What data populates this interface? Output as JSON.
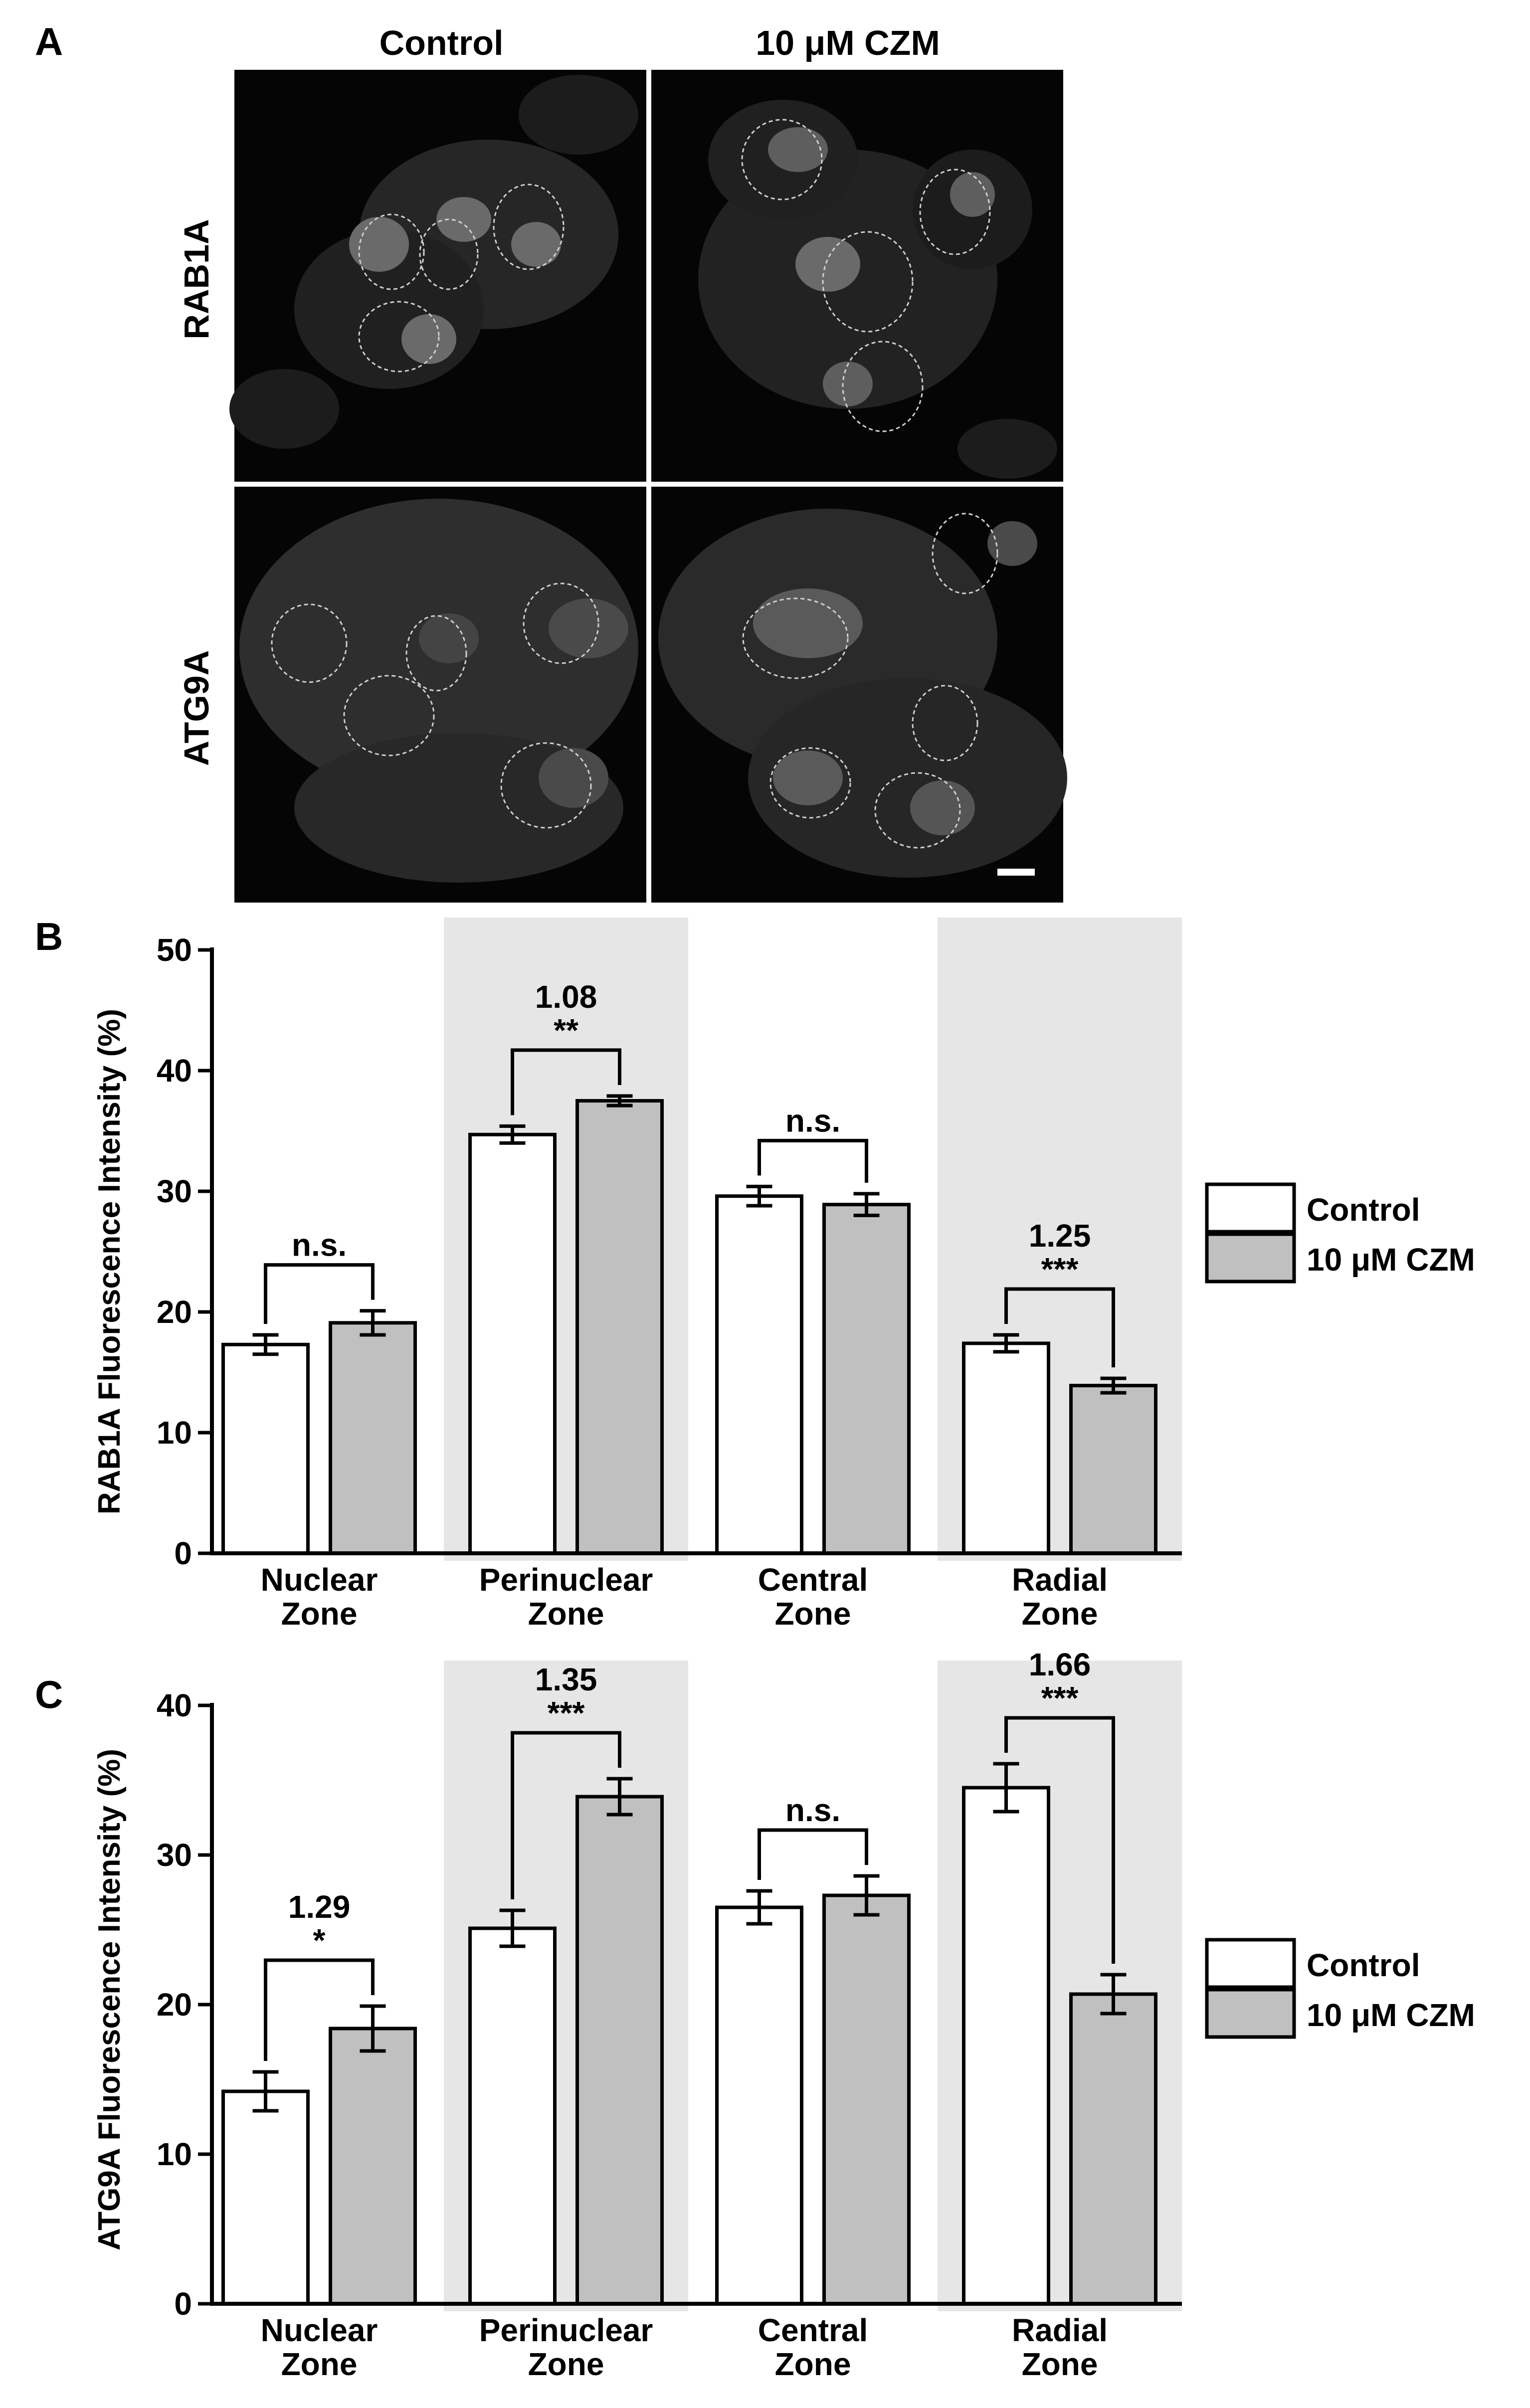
{
  "panel_a": {
    "label": "A",
    "columns": [
      "Control",
      "10 μM CZM"
    ],
    "rows": [
      "RAB1A",
      "ATG9A"
    ]
  },
  "chart_data": [
    {
      "panel_label": "B",
      "type": "bar",
      "ylabel": "RAB1A Fluorescence Intensity (%)",
      "ylim": [
        0,
        50
      ],
      "yticks": [
        0,
        10,
        20,
        30,
        40,
        50
      ],
      "categories": [
        "Nuclear\nZone",
        "Perinuclear\nZone",
        "Central\nZone",
        "Radial\nZone"
      ],
      "shaded_categories": [
        1,
        3
      ],
      "series": [
        {
          "name": "Control",
          "color": "#ffffff",
          "values": [
            17.3,
            34.7,
            29.6,
            17.4
          ],
          "errors": [
            0.8,
            0.7,
            0.8,
            0.7
          ]
        },
        {
          "name": "10 μM CZM",
          "color": "#c0c0c0",
          "values": [
            19.1,
            37.5,
            28.9,
            13.9
          ],
          "errors": [
            1.0,
            0.4,
            0.9,
            0.6
          ]
        }
      ],
      "annotations": [
        {
          "category": 0,
          "ratio": "",
          "significance": "n.s."
        },
        {
          "category": 1,
          "ratio": "1.08",
          "significance": "**"
        },
        {
          "category": 2,
          "ratio": "",
          "significance": "n.s."
        },
        {
          "category": 3,
          "ratio": "1.25",
          "significance": "***"
        }
      ],
      "legend": {
        "position": "right"
      }
    },
    {
      "panel_label": "C",
      "type": "bar",
      "ylabel": "ATG9A Fluorescence Intensity (%)",
      "ylim": [
        0,
        40
      ],
      "yticks": [
        0,
        10,
        20,
        30,
        40
      ],
      "categories": [
        "Nuclear\nZone",
        "Perinuclear\nZone",
        "Central\nZone",
        "Radial\nZone"
      ],
      "shaded_categories": [
        1,
        3
      ],
      "series": [
        {
          "name": "Control",
          "color": "#ffffff",
          "values": [
            14.2,
            25.1,
            26.5,
            34.5
          ],
          "errors": [
            1.3,
            1.2,
            1.1,
            1.6
          ]
        },
        {
          "name": "10 μM CZM",
          "color": "#c0c0c0",
          "values": [
            18.4,
            33.9,
            27.3,
            20.7
          ],
          "errors": [
            1.5,
            1.2,
            1.3,
            1.3
          ]
        }
      ],
      "annotations": [
        {
          "category": 0,
          "ratio": "1.29",
          "significance": "*"
        },
        {
          "category": 1,
          "ratio": "1.35",
          "significance": "***"
        },
        {
          "category": 2,
          "ratio": "",
          "significance": "n.s."
        },
        {
          "category": 3,
          "ratio": "1.66",
          "significance": "***"
        }
      ],
      "legend": {
        "position": "right"
      }
    }
  ],
  "colors": {
    "background": "#ffffff",
    "shade": "#e6e6e6",
    "bar_control": "#ffffff",
    "bar_czm": "#c0c0c0",
    "axis": "#000000",
    "micrograph_bg": "#000000"
  }
}
